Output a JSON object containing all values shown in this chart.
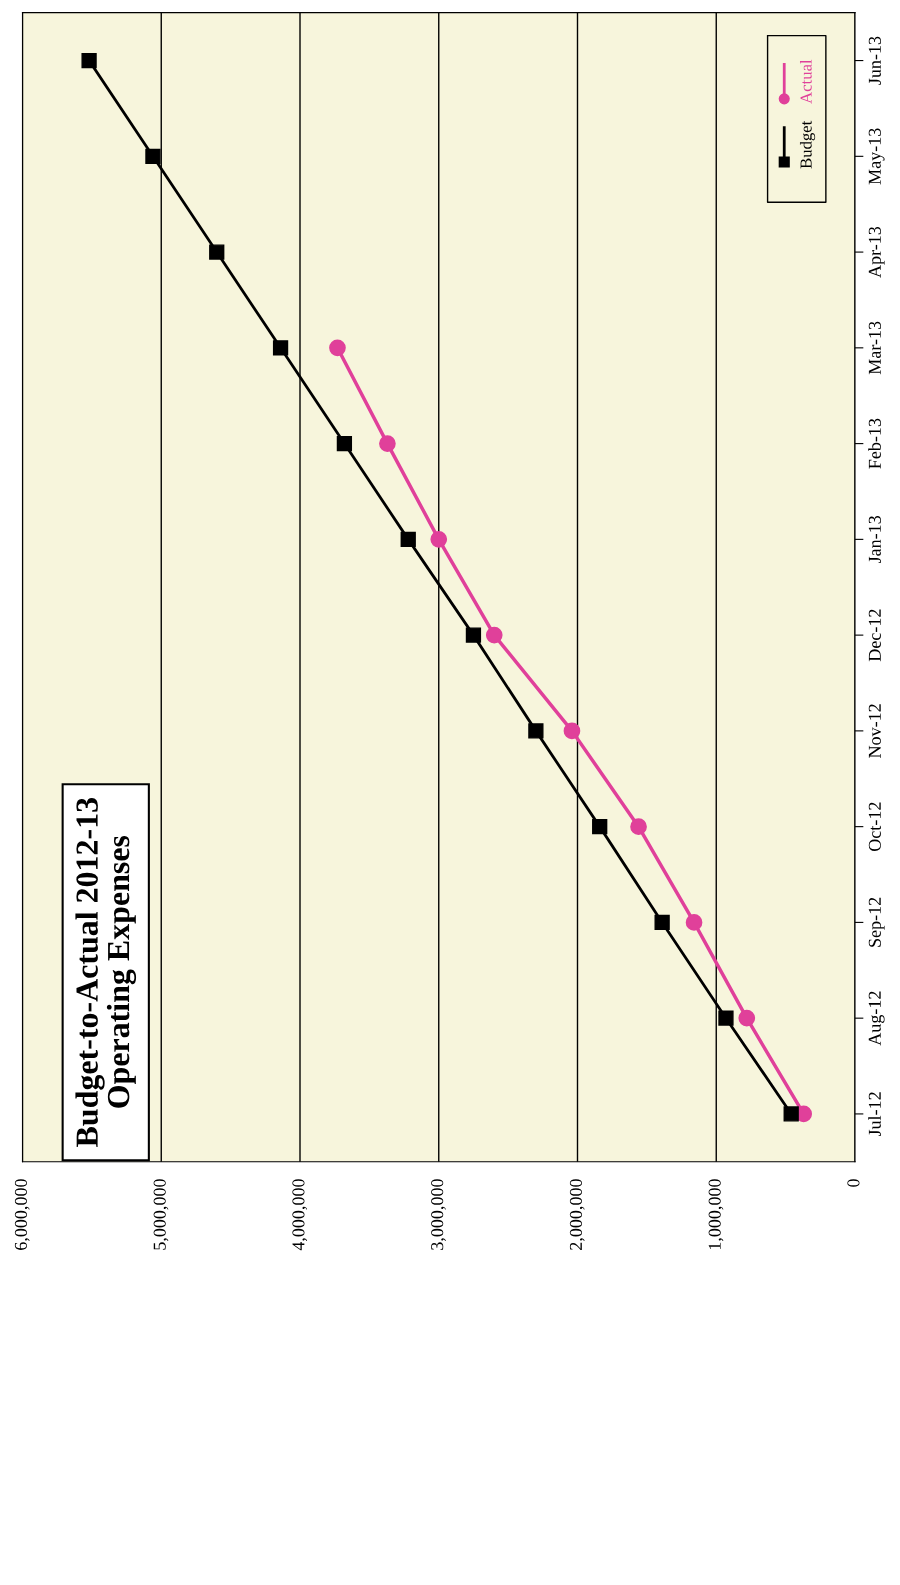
{
  "chart_data": {
    "type": "line",
    "orientation": "horizontal",
    "title": "Budget-to-Actual 2012-13\nOperating Expenses",
    "categories": [
      "Jun-13",
      "May-13",
      "Apr-13",
      "Mar-13",
      "Feb-13",
      "Jan-13",
      "Dec-12",
      "Nov-12",
      "Oct-12",
      "Sep-12",
      "Aug-12",
      "Jul-12"
    ],
    "series": [
      {
        "name": "Actual",
        "color": "#e0409a",
        "marker": "circle",
        "values": [
          null,
          null,
          null,
          3730000,
          3370000,
          3000000,
          2600000,
          2040000,
          1560000,
          1160000,
          780000,
          370000
        ]
      },
      {
        "name": "Budget",
        "color": "#000000",
        "marker": "square",
        "values": [
          5520000,
          5060000,
          4600000,
          4140000,
          3680000,
          3220000,
          2750000,
          2300000,
          1840000,
          1390000,
          930000,
          460000
        ]
      }
    ],
    "xlim": [
      6000000,
      0
    ],
    "xticks": [
      {
        "value": 0,
        "label": "0"
      },
      {
        "value": 1000000,
        "label": "1,000,000"
      },
      {
        "value": 2000000,
        "label": "2,000,000"
      },
      {
        "value": 3000000,
        "label": "3,000,000"
      },
      {
        "value": 4000000,
        "label": "4,000,000"
      },
      {
        "value": 5000000,
        "label": "5,000,000"
      },
      {
        "value": 6000000,
        "label": "6,000,000"
      }
    ],
    "grid": "x",
    "legend": "top right",
    "line_style": "solid"
  }
}
